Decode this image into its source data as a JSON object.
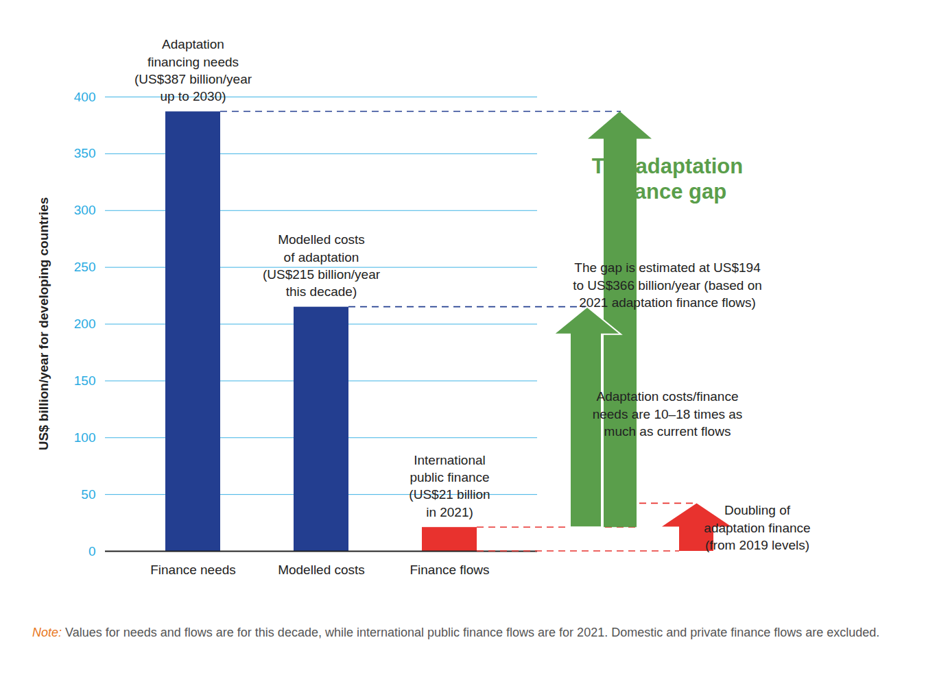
{
  "chart_data": {
    "type": "bar",
    "categories": [
      "Finance needs",
      "Modelled costs",
      "Finance flows"
    ],
    "values": [
      387,
      215,
      21
    ],
    "colors": [
      "#233e90",
      "#233e90",
      "#e8322e"
    ],
    "bar_labels": [
      "Adaptation\nfinancing needs\n(US$387 billion/year\nup to 2030)",
      "Modelled costs\nof adaptation\n(US$215 billion/year\nthis decade)",
      "International\npublic finance\n(US$21 billion\nin 2021)"
    ],
    "ylabel": "US$ billion/year for developing countries",
    "ylim": [
      0,
      400
    ],
    "yticks": [
      0,
      50,
      100,
      150,
      200,
      250,
      300,
      350,
      400
    ],
    "grid": true,
    "annotations": {
      "gap_title": "The adaptation\nfinance gap",
      "gap_text": "The gap is estimated at US$194\nto US$366 billion/year (based on\n2021 adaptation finance flows)",
      "ratio_text": "Adaptation costs/finance\nneeds are 10–18 times as\nmuch as current flows",
      "doubling_text": "Doubling of\nadaptation finance\n(from 2019 levels)",
      "doubling_value": 42
    },
    "note": {
      "label": "Note:",
      "text": "Values for needs and flows are for this decade, while international public finance flows are for 2021. Domestic and private finance flows are excluded."
    }
  }
}
